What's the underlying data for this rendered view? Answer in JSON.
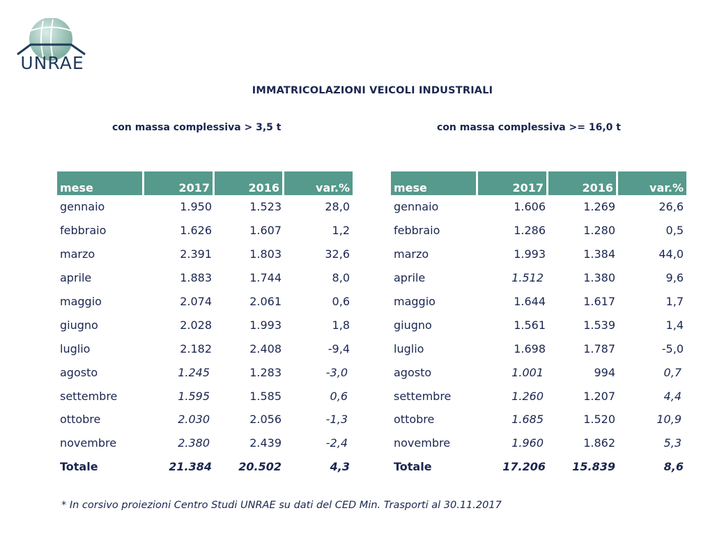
{
  "logo": {
    "text": "UNRAE"
  },
  "title": "IMMATRICOLAZIONI VEICOLI INDUSTRIALI",
  "headers": [
    "mese",
    "2017",
    "2016",
    "var.%"
  ],
  "left": {
    "subtitle": "con massa complessiva > 3,5 t",
    "rows": [
      {
        "mese": "gennaio",
        "y2017": "1.950",
        "y2016": "1.523",
        "var": "28,0",
        "italic": false
      },
      {
        "mese": "febbraio",
        "y2017": "1.626",
        "y2016": "1.607",
        "var": "1,2",
        "italic": false
      },
      {
        "mese": "marzo",
        "y2017": "2.391",
        "y2016": "1.803",
        "var": "32,6",
        "italic": false
      },
      {
        "mese": "aprile",
        "y2017": "1.883",
        "y2016": "1.744",
        "var": "8,0",
        "italic": false
      },
      {
        "mese": "maggio",
        "y2017": "2.074",
        "y2016": "2.061",
        "var": "0,6",
        "italic": false
      },
      {
        "mese": "giugno",
        "y2017": "2.028",
        "y2016": "1.993",
        "var": "1,8",
        "italic": false
      },
      {
        "mese": "luglio",
        "y2017": "2.182",
        "y2016": "2.408",
        "var": "-9,4",
        "italic": false
      },
      {
        "mese": "agosto",
        "y2017": "1.245",
        "y2016": "1.283",
        "var": "-3,0",
        "italic": true
      },
      {
        "mese": "settembre",
        "y2017": "1.595",
        "y2016": "1.585",
        "var": "0,6",
        "italic": true
      },
      {
        "mese": "ottobre",
        "y2017": "2.030",
        "y2016": "2.056",
        "var": "-1,3",
        "italic": true
      },
      {
        "mese": "novembre",
        "y2017": "2.380",
        "y2016": "2.439",
        "var": "-2,4",
        "italic": true
      }
    ],
    "total": {
      "mese": "Totale",
      "y2017": "21.384",
      "y2016": "20.502",
      "var": "4,3"
    }
  },
  "right": {
    "subtitle": "con massa complessiva >= 16,0 t",
    "rows": [
      {
        "mese": "gennaio",
        "y2017": "1.606",
        "y2016": "1.269",
        "var": "26,6",
        "italic": false
      },
      {
        "mese": "febbraio",
        "y2017": "1.286",
        "y2016": "1.280",
        "var": "0,5",
        "italic": false
      },
      {
        "mese": "marzo",
        "y2017": "1.993",
        "y2016": "1.384",
        "var": "44,0",
        "italic": false
      },
      {
        "mese": "aprile",
        "y2017": "1.512",
        "y2016": "1.380",
        "var": "9,6",
        "italic": "y2017"
      },
      {
        "mese": "maggio",
        "y2017": "1.644",
        "y2016": "1.617",
        "var": "1,7",
        "italic": false
      },
      {
        "mese": "giugno",
        "y2017": "1.561",
        "y2016": "1.539",
        "var": "1,4",
        "italic": false
      },
      {
        "mese": "luglio",
        "y2017": "1.698",
        "y2016": "1.787",
        "var": "-5,0",
        "italic": false
      },
      {
        "mese": "agosto",
        "y2017": "1.001",
        "y2016": "994",
        "var": "0,7",
        "italic": true
      },
      {
        "mese": "settembre",
        "y2017": "1.260",
        "y2016": "1.207",
        "var": "4,4",
        "italic": true
      },
      {
        "mese": "ottobre",
        "y2017": "1.685",
        "y2016": "1.520",
        "var": "10,9",
        "italic": true
      },
      {
        "mese": "novembre",
        "y2017": "1.960",
        "y2016": "1.862",
        "var": "5,3",
        "italic": true
      }
    ],
    "total": {
      "mese": "Totale",
      "y2017": "17.206",
      "y2016": "15.839",
      "var": "8,6"
    }
  },
  "note": "* In corsivo proiezioni Centro Studi UNRAE su dati del CED Min. Trasporti al 30.11.2017",
  "colors": {
    "header_bg": "#559a8c",
    "text": "#1a2650",
    "logo_circle": "#8fb8b0"
  }
}
